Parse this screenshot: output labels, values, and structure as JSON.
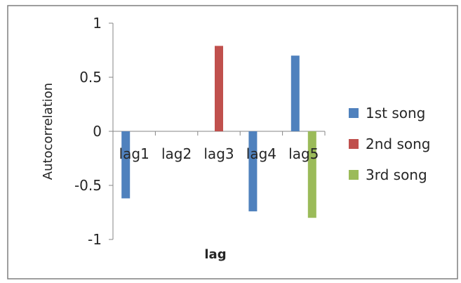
{
  "chart_data": {
    "type": "bar",
    "categories": [
      "lag1",
      "lag2",
      "lag3",
      "lag4",
      "lag5"
    ],
    "series": [
      {
        "name": "1st song",
        "color": "#4f81bd",
        "values": [
          -0.62,
          null,
          null,
          -0.74,
          0.7
        ]
      },
      {
        "name": "2nd song",
        "color": "#c0504d",
        "values": [
          null,
          null,
          0.79,
          null,
          null
        ]
      },
      {
        "name": "3rd song",
        "color": "#9bbb59",
        "values": [
          null,
          null,
          null,
          null,
          -0.8
        ]
      }
    ],
    "yticks": [
      "1",
      "0.5",
      "0",
      "-0.5",
      "-1"
    ],
    "ylim": [
      -1,
      1
    ],
    "xlabel": "lag",
    "ylabel": "Autocorrelation",
    "legend": "right",
    "grid": false
  }
}
